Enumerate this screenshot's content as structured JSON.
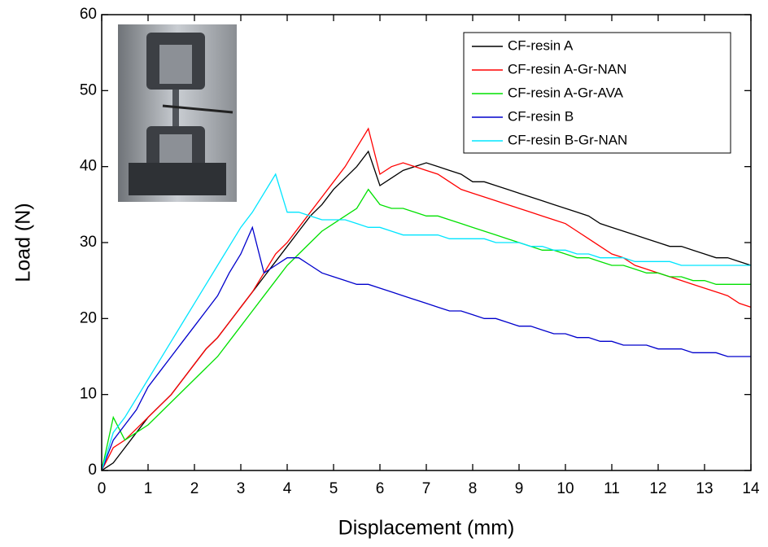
{
  "chart_data": {
    "type": "line",
    "x_label": "Displacement (mm)",
    "y_label": "Load (N)",
    "xlim": [
      0,
      14
    ],
    "ylim": [
      0,
      60
    ],
    "xticks": [
      0,
      1,
      2,
      3,
      4,
      5,
      6,
      7,
      8,
      9,
      10,
      11,
      12,
      13,
      14
    ],
    "yticks": [
      0,
      10,
      20,
      30,
      40,
      50,
      60
    ],
    "legend": "upper right",
    "x": [
      0,
      0.25,
      0.5,
      0.75,
      1,
      1.25,
      1.5,
      1.75,
      2,
      2.25,
      2.5,
      2.75,
      3,
      3.25,
      3.5,
      3.75,
      4,
      4.25,
      4.5,
      4.75,
      5,
      5.25,
      5.5,
      5.75,
      6,
      6.25,
      6.5,
      6.75,
      7,
      7.25,
      7.5,
      7.75,
      8,
      8.25,
      8.5,
      8.75,
      9,
      9.25,
      9.5,
      9.75,
      10,
      10.25,
      10.5,
      10.75,
      11,
      11.25,
      11.5,
      11.75,
      12,
      12.25,
      12.5,
      12.75,
      13,
      13.25,
      13.5,
      13.75,
      14
    ],
    "series": [
      {
        "name": "CF-resin A",
        "color": "#000000",
        "values": [
          0,
          1,
          3,
          5,
          7,
          8.5,
          10,
          12,
          14,
          16,
          17.5,
          19.5,
          21.5,
          23.5,
          25.5,
          27.5,
          29.5,
          31.5,
          33.5,
          35,
          37,
          38.5,
          40,
          42,
          37.5,
          38.5,
          39.5,
          40,
          40.5,
          40,
          39.5,
          39,
          38,
          38,
          37.5,
          37,
          36.5,
          36,
          35.5,
          35,
          34.5,
          34,
          33.5,
          32.5,
          32,
          31.5,
          31,
          30.5,
          30,
          29.5,
          29.5,
          29,
          28.5,
          28,
          28,
          27.5,
          27
        ]
      },
      {
        "name": "CF-resin A-Gr-NAN",
        "color": "#ff0000",
        "values": [
          0,
          3,
          4,
          5.5,
          7,
          8.5,
          10,
          12,
          14,
          16,
          17.5,
          19.5,
          21.5,
          23.5,
          26,
          28.5,
          30,
          32,
          34,
          36,
          38,
          40,
          42.5,
          45,
          39,
          40,
          40.5,
          40,
          39.5,
          39,
          38,
          37,
          36.5,
          36,
          35.5,
          35,
          34.5,
          34,
          33.5,
          33,
          32.5,
          31.5,
          30.5,
          29.5,
          28.5,
          28,
          27,
          26.5,
          26,
          25.5,
          25,
          24.5,
          24,
          23.5,
          23,
          22,
          21.5
        ]
      },
      {
        "name": "CF-resin A-Gr-AVA",
        "color": "#00e000",
        "values": [
          0,
          7,
          4,
          5,
          6,
          7.5,
          9,
          10.5,
          12,
          13.5,
          15,
          17,
          19,
          21,
          23,
          25,
          27,
          28.5,
          30,
          31.5,
          32.5,
          33.5,
          34.5,
          37,
          35,
          34.5,
          34.5,
          34,
          33.5,
          33.5,
          33,
          32.5,
          32,
          31.5,
          31,
          30.5,
          30,
          29.5,
          29,
          29,
          28.5,
          28,
          28,
          27.5,
          27,
          27,
          26.5,
          26,
          26,
          25.5,
          25.5,
          25,
          25,
          24.5,
          24.5,
          24.5,
          24.5
        ]
      },
      {
        "name": "CF-resin B",
        "color": "#0000cc",
        "values": [
          0,
          4,
          6,
          8,
          11,
          13,
          15,
          17,
          19,
          21,
          23,
          26,
          28.5,
          32,
          26,
          27,
          28,
          28,
          27,
          26,
          25.5,
          25,
          24.5,
          24.5,
          24,
          23.5,
          23,
          22.5,
          22,
          21.5,
          21,
          21,
          20.5,
          20,
          20,
          19.5,
          19,
          19,
          18.5,
          18,
          18,
          17.5,
          17.5,
          17,
          17,
          16.5,
          16.5,
          16.5,
          16,
          16,
          16,
          15.5,
          15.5,
          15.5,
          15,
          15,
          15
        ]
      },
      {
        "name": "CF-resin B-Gr-NAN",
        "color": "#00e5ff",
        "values": [
          0,
          5,
          7,
          9.5,
          12,
          14.5,
          17,
          19.5,
          22,
          24.5,
          27,
          29.5,
          32,
          34,
          36.5,
          39,
          34,
          34,
          33.5,
          33,
          33,
          33,
          32.5,
          32,
          32,
          31.5,
          31,
          31,
          31,
          31,
          30.5,
          30.5,
          30.5,
          30.5,
          30,
          30,
          30,
          29.5,
          29.5,
          29,
          29,
          28.5,
          28.5,
          28,
          28,
          28,
          27.5,
          27.5,
          27.5,
          27.5,
          27,
          27,
          27,
          27,
          27,
          27,
          27
        ]
      }
    ]
  }
}
